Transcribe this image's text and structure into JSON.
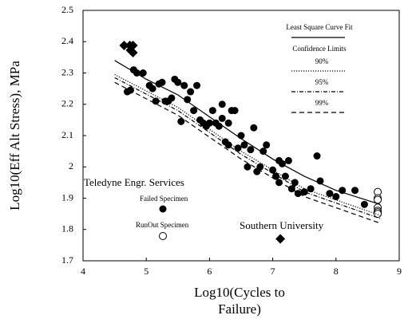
{
  "chart_data": {
    "type": "scatter",
    "xlabel": "Log10(Cycles to Failure)",
    "ylabel": "Log10(Eff Alt Stress), MPa",
    "xlim": [
      4,
      9
    ],
    "xticks": [
      4,
      5,
      6,
      7,
      8,
      9
    ],
    "ylim": [
      1.7,
      2.5
    ],
    "yticks": [
      1.7,
      1.8,
      1.9,
      2,
      2.1,
      2.2,
      2.3,
      2.4,
      2.5
    ],
    "annotations": [
      "Teledyne Engr. Services",
      "Failed Specimen",
      "RunOut Specimen",
      "Southern University",
      "Confidence Limits"
    ],
    "series": [
      {
        "marker": "circle",
        "color": "#000000",
        "x": [
          4.7,
          4.75,
          4.8,
          4.85,
          4.95,
          5.05,
          5.1,
          5.15,
          5.2,
          5.25,
          5.3,
          5.35,
          5.4,
          5.45,
          5.5,
          5.55,
          5.6,
          5.65,
          5.7,
          5.75,
          5.8,
          5.85,
          5.9,
          5.95,
          6.0,
          6.05,
          6.1,
          6.15,
          6.2,
          6.25,
          6.3,
          6.35,
          6.4,
          6.45,
          6.3,
          6.5,
          6.55,
          6.6,
          6.65,
          6.7,
          6.75,
          6.8,
          6.85,
          7.0,
          7.05,
          7.1,
          7.15,
          7.2,
          7.25,
          7.3,
          7.35,
          7.4,
          7.5,
          7.6,
          7.7,
          7.75,
          7.9,
          8.0,
          8.1,
          8.3,
          8.45,
          7.1,
          6.2,
          6.9
        ],
        "values": [
          2.24,
          2.245,
          2.31,
          2.3,
          2.3,
          2.26,
          2.25,
          2.21,
          2.265,
          2.27,
          2.21,
          2.21,
          2.22,
          2.28,
          2.27,
          2.145,
          2.26,
          2.215,
          2.24,
          2.18,
          2.26,
          2.15,
          2.14,
          2.13,
          2.14,
          2.18,
          2.14,
          2.13,
          2.155,
          2.08,
          2.07,
          2.18,
          2.18,
          2.06,
          2.14,
          2.1,
          2.07,
          2.0,
          2.055,
          2.125,
          1.985,
          2.0,
          2.05,
          1.99,
          1.97,
          2.02,
          2.01,
          1.97,
          2.02,
          1.93,
          1.95,
          1.915,
          1.92,
          1.93,
          2.035,
          1.955,
          1.915,
          1.905,
          1.925,
          1.925,
          1.88,
          1.95,
          2.2,
          2.07
        ]
      },
      {
        "marker": "open-circle",
        "color": "#000000",
        "x": [
          8.66,
          8.66,
          8.66,
          8.66,
          8.66,
          8.66,
          8.66
        ],
        "values": [
          1.92,
          1.9,
          1.895,
          1.87,
          1.86,
          1.855,
          1.85
        ]
      },
      {
        "marker": "diamond",
        "color": "#000000",
        "x": [
          4.65,
          4.74,
          4.79,
          4.75,
          4.79,
          7.12
        ],
        "values": [
          2.388,
          2.388,
          2.388,
          2.373,
          2.365,
          1.77
        ]
      },
      {
        "name": "Least Square Curve Fit",
        "style": "solid",
        "color": "#000000",
        "x": [
          4.5,
          5.0,
          5.5,
          6.0,
          6.5,
          7.0,
          7.5,
          8.0,
          8.7
        ],
        "values": [
          2.34,
          2.28,
          2.23,
          2.16,
          2.09,
          2.025,
          1.97,
          1.925,
          1.88
        ]
      },
      {
        "name": "90%",
        "style": "dotted",
        "color": "#000000",
        "x": [
          4.5,
          5.5,
          6.5,
          7.5,
          8.7
        ],
        "values": [
          2.295,
          2.19,
          2.05,
          1.93,
          1.845
        ]
      },
      {
        "name": "95%",
        "style": "dashdot",
        "color": "#000000",
        "x": [
          4.5,
          5.5,
          6.5,
          7.5,
          8.7
        ],
        "values": [
          2.285,
          2.18,
          2.04,
          1.92,
          1.835
        ]
      },
      {
        "name": "99%",
        "style": "dashed",
        "color": "#000000",
        "x": [
          4.5,
          5.5,
          6.5,
          7.5,
          8.7
        ],
        "values": [
          2.27,
          2.165,
          2.025,
          1.905,
          1.82
        ]
      }
    ]
  }
}
